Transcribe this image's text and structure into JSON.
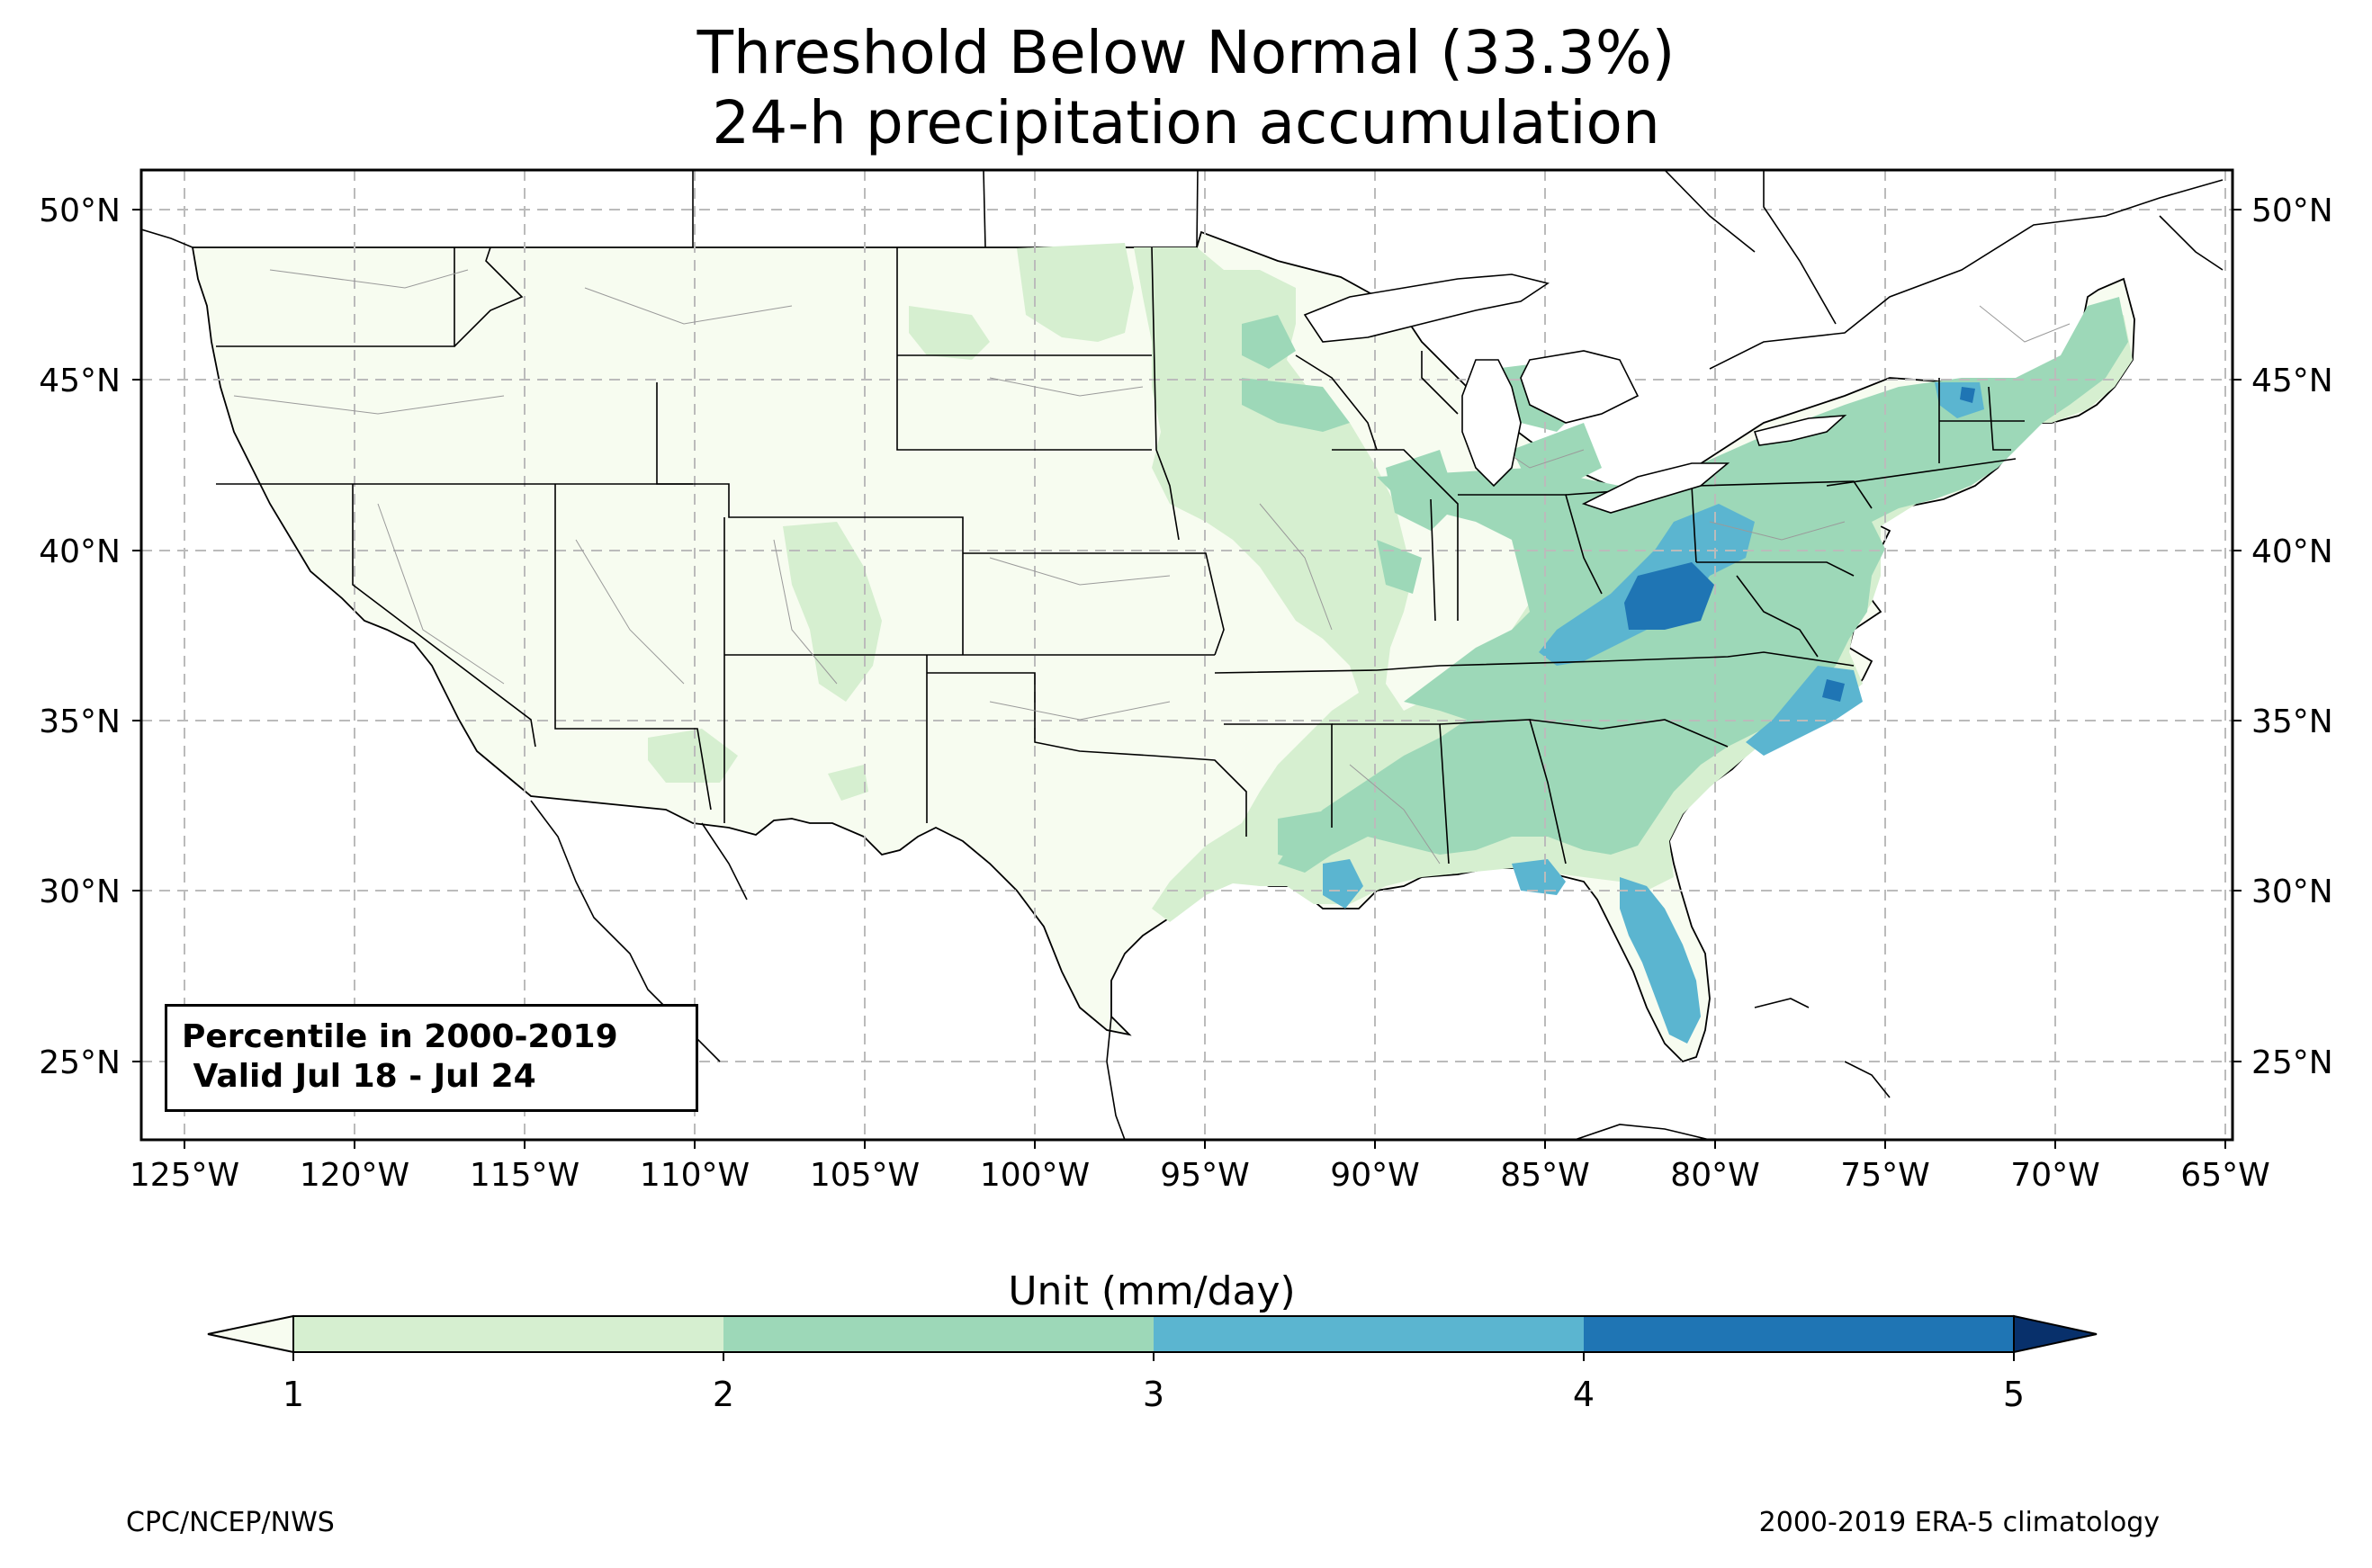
{
  "title": {
    "line1": "Threshold Below Normal (33.3%)",
    "line2": "24-h precipitation accumulation"
  },
  "map": {
    "region": "Contiguous United States",
    "lat_ticks": [
      "50°N",
      "45°N",
      "40°N",
      "35°N",
      "30°N",
      "25°N"
    ],
    "lon_ticks": [
      "125°W",
      "120°W",
      "115°W",
      "110°W",
      "105°W",
      "100°W",
      "95°W",
      "90°W",
      "85°W",
      "80°W",
      "75°W",
      "70°W",
      "65°W"
    ],
    "grid": "dashed",
    "lon_range": [
      -126.2,
      -64.8
    ],
    "lat_range": [
      22.8,
      51.2
    ],
    "base_fill": "#f7fcf0",
    "land_outside_fill": "#ffffff"
  },
  "info_box": {
    "line1": "Percentile in 2000-2019",
    "line2": " Valid Jul 18 - Jul 24"
  },
  "colorbar": {
    "title": "Unit (mm/day)",
    "labels": [
      "1",
      "2",
      "3",
      "4",
      "5"
    ],
    "colors": [
      "#ccebc5",
      "#a8ddb5",
      "#7bccc4",
      "#4eb3d3",
      "#2b8cbe",
      "#0868ac",
      "#084081"
    ],
    "bins": [
      {
        "range": "1-2",
        "color": "#d6efd0"
      },
      {
        "range": "2-3",
        "color": "#9dd8b8"
      },
      {
        "range": "3-4",
        "color": "#5bb5d0"
      },
      {
        "range": "4-5",
        "color": "#1f75b4"
      }
    ],
    "under_color": "#f7fcf0",
    "over_color": "#08306b"
  },
  "footer": {
    "left": "CPC/NCEP/NWS",
    "right": "2000-2019 ERA-5 climatology"
  }
}
